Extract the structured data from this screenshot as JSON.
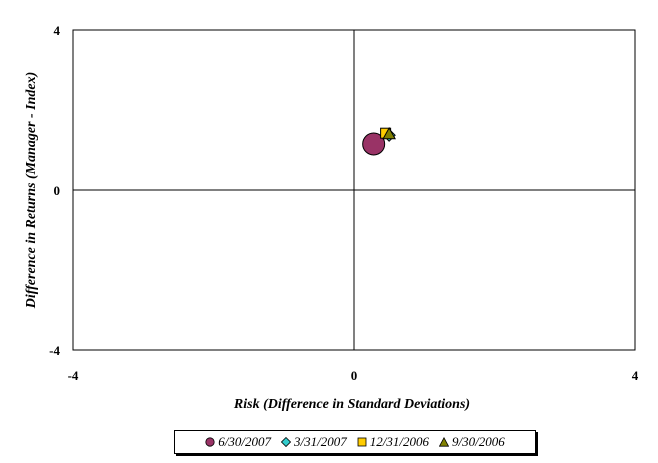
{
  "chart_data": {
    "type": "scatter",
    "title": "",
    "xlabel": "Risk (Difference in Standard Deviations)",
    "ylabel": "Difference in Returns (Manager - Index)",
    "xlim": [
      -4,
      4
    ],
    "ylim": [
      -4,
      4
    ],
    "x_ticks": [
      "-4",
      "0",
      "4"
    ],
    "y_ticks": [
      "-4",
      "0",
      "4"
    ],
    "grid": false,
    "legend_position": "bottom",
    "series": [
      {
        "name": "6/30/2007",
        "marker": "circle",
        "color": "#993366",
        "x": 0.28,
        "y": 1.15
      },
      {
        "name": "3/31/2007",
        "marker": "diamond",
        "color": "#33CCCC",
        "x": 0.5,
        "y": 1.37
      },
      {
        "name": "12/31/2006",
        "marker": "square",
        "color": "#FFCC00",
        "x": 0.45,
        "y": 1.42
      },
      {
        "name": "9/30/2006",
        "marker": "triangle",
        "color": "#808000",
        "x": 0.5,
        "y": 1.4
      }
    ]
  }
}
